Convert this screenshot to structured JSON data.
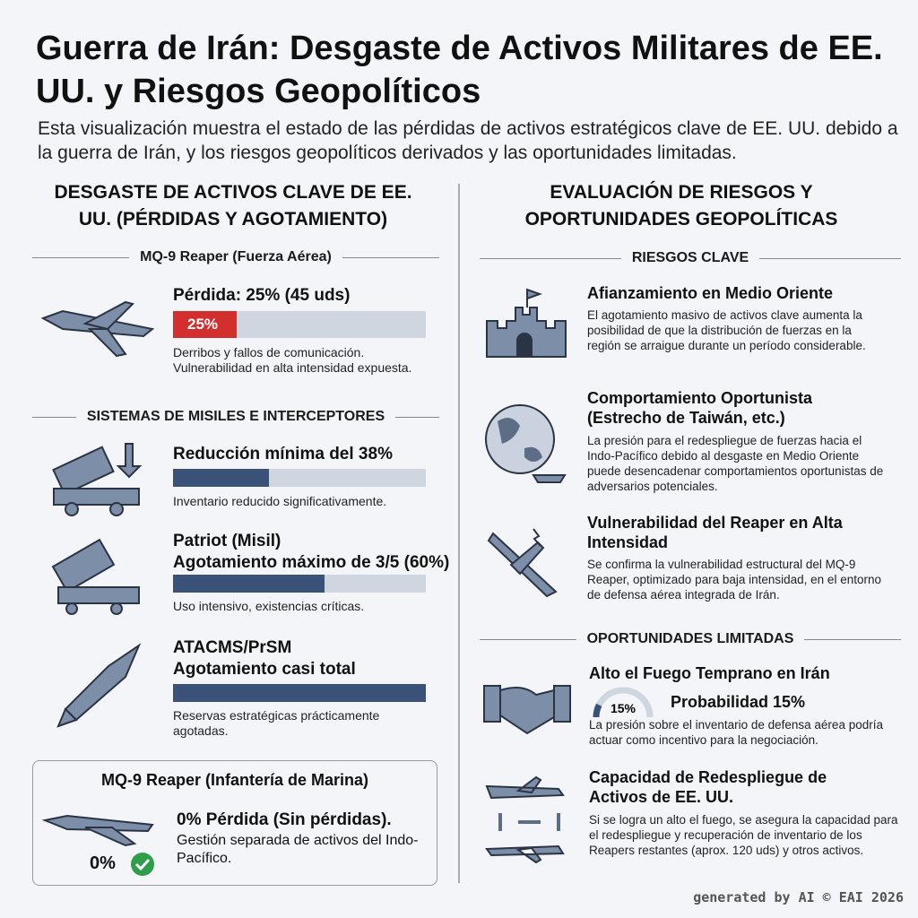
{
  "header": {
    "title": "Guerra de Irán: Desgaste de Activos Militares de EE. UU. y Riesgos Geopolíticos",
    "subtitle": "Esta visualización muestra el estado de las pérdidas de activos estratégicos clave de EE. UU. debido a la guerra de Irán, y los riesgos geopolíticos derivados y las oportunidades limitadas."
  },
  "left": {
    "heading": "DESGASTE DE ACTIVOS CLAVE DE EE. UU. (PÉRDIDAS Y AGOTAMIENTO)",
    "reaper_af": {
      "section": "MQ-9 Reaper (Fuerza Aérea)",
      "title": "Pérdida: 25% (45 uds)",
      "bar": {
        "value": 25,
        "label": "25%"
      },
      "note": "Derribos y fallos de comunicación. Vulnerabilidad en alta intensidad expuesta."
    },
    "missiles": {
      "section": "SISTEMAS DE MISILES E INTERCEPTORES",
      "items": [
        {
          "title": "Reducción mínima del 38%",
          "bar": 38,
          "note": "Inventario reducido significativamente."
        },
        {
          "title": "Patriot (Misil)",
          "subtitle": "Agotamiento máximo de 3/5 (60%)",
          "bar": 60,
          "note": "Uso intensivo, existencias críticas."
        },
        {
          "title": "ATACMS/PrSM",
          "subtitle": "Agotamiento casi total",
          "bar": 100,
          "note": "Reservas estratégicas prácticamente agotadas."
        }
      ]
    },
    "reaper_mc": {
      "section": "MQ-9 Reaper (Infantería de Marina)",
      "title": "0% Pérdida (Sin pérdidas).",
      "note": "Gestión separada de activos del Indo-Pacífico.",
      "badge": "0%"
    }
  },
  "right": {
    "heading": "EVALUACIÓN DE RIESGOS Y OPORTUNIDADES GEOPOLÍTICAS",
    "risks": {
      "section": "RIESGOS CLAVE",
      "items": [
        {
          "title": "Afianzamiento en Medio Oriente",
          "text": "El agotamiento masivo de activos clave aumenta la posibilidad de que la distribución de fuerzas en la región se arraigue durante un período considerable."
        },
        {
          "title": "Comportamiento Oportunista (Estrecho de Taiwán, etc.)",
          "text": "La presión para el redespliegue de fuerzas hacia el Indo-Pacífico debido al desgaste en Medio Oriente puede desencadenar comportamientos oportunistas de adversarios potenciales."
        },
        {
          "title": "Vulnerabilidad del Reaper en Alta Intensidad",
          "text": "Se confirma la vulnerabilidad estructural del MQ-9 Reaper, optimizado para baja intensidad, en el entorno de defensa aérea integrada de Irán."
        }
      ]
    },
    "opportunities": {
      "section": "OPORTUNIDADES LIMITADAS",
      "items": [
        {
          "title": "Alto el Fuego Temprano en Irán",
          "gauge": {
            "value": 15,
            "label": "15%"
          },
          "probability": "Probabilidad 15%",
          "text": "La presión sobre el inventario de defensa aérea podría actuar como incentivo para la negociación."
        },
        {
          "title": "Capacidad de Redespliegue de Activos de EE. UU.",
          "text": "Si se logra un alto el fuego, se asegura la capacidad para el redespliegue y recuperación de inventario de los Reapers restantes (aprox. 120 uds) y otros activos."
        }
      ]
    }
  },
  "footer": "generated by AI © EAI 2026"
}
